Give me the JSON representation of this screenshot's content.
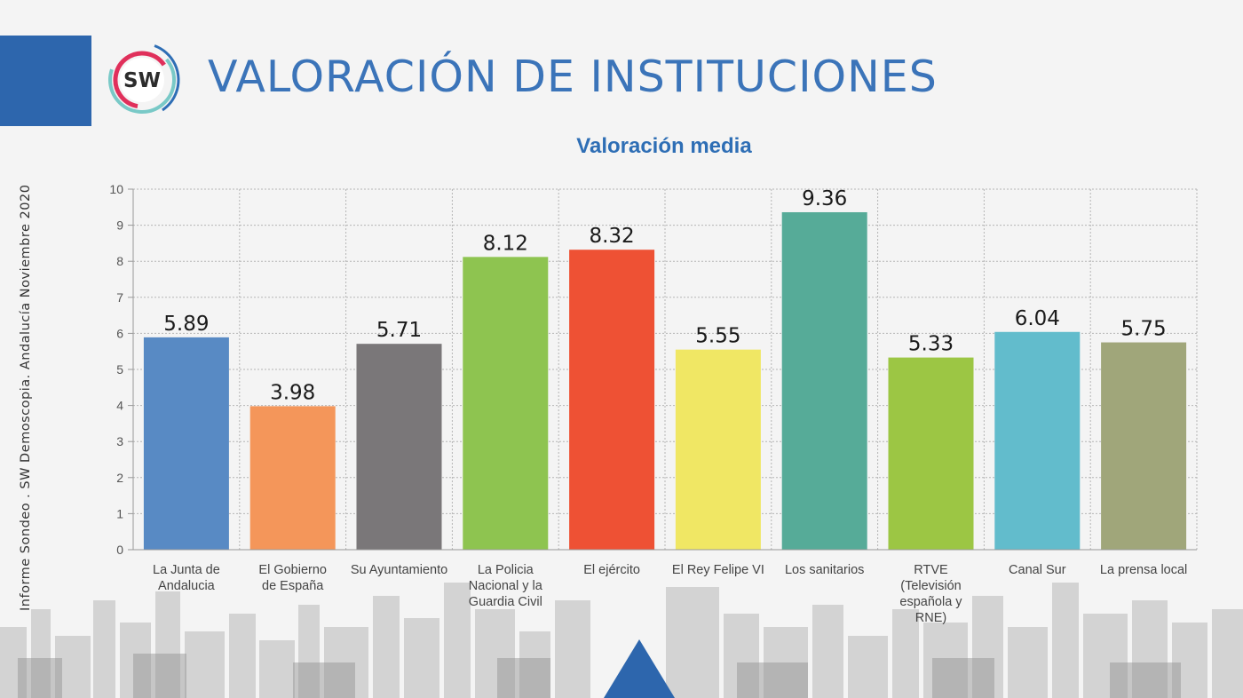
{
  "logo": {
    "text": "SW"
  },
  "header": {
    "title": "VALORACIÓN DE INSTITUCIONES"
  },
  "side_caption": "Informe Sondeo . SW  Demoscopia. Andalucía Noviembre 2020",
  "colors": {
    "accent_blue": "#2d66ad",
    "title_blue": "#3b74b9",
    "chart_title_blue": "#2e6eb5"
  },
  "chart_data": {
    "type": "bar",
    "title": "Valoración media",
    "xlabel": "",
    "ylabel": "",
    "ylim": [
      0,
      10
    ],
    "yticks": [
      "0",
      "1",
      "2",
      "3",
      "4",
      "5",
      "6",
      "7",
      "8",
      "9",
      "10"
    ],
    "grid": true,
    "categories": [
      [
        "La Junta de",
        "Andalucia"
      ],
      [
        "El Gobierno",
        "de España"
      ],
      [
        "Su Ayuntamiento"
      ],
      [
        "La Policia",
        "Nacional y la",
        "Guardia Civil"
      ],
      [
        "El ejército"
      ],
      [
        "El Rey Felipe VI"
      ],
      [
        "Los sanitarios"
      ],
      [
        "RTVE",
        "(Televisión",
        "española y",
        "RNE)"
      ],
      [
        "Canal Sur"
      ],
      [
        "La prensa local"
      ]
    ],
    "values": [
      5.89,
      3.98,
      5.71,
      8.12,
      8.32,
      5.55,
      9.36,
      5.33,
      6.04,
      5.75
    ],
    "data_labels": [
      "5.89",
      "3.98",
      "5.71",
      "8.12",
      "8.32",
      "5.55",
      "9.36",
      "5.33",
      "6.04",
      "5.75"
    ],
    "bar_colors": [
      "#588ac4",
      "#f4965a",
      "#7a7779",
      "#8ec450",
      "#ee5134",
      "#f0e764",
      "#56ab98",
      "#9cc644",
      "#62bccc",
      "#a0a67a"
    ]
  }
}
